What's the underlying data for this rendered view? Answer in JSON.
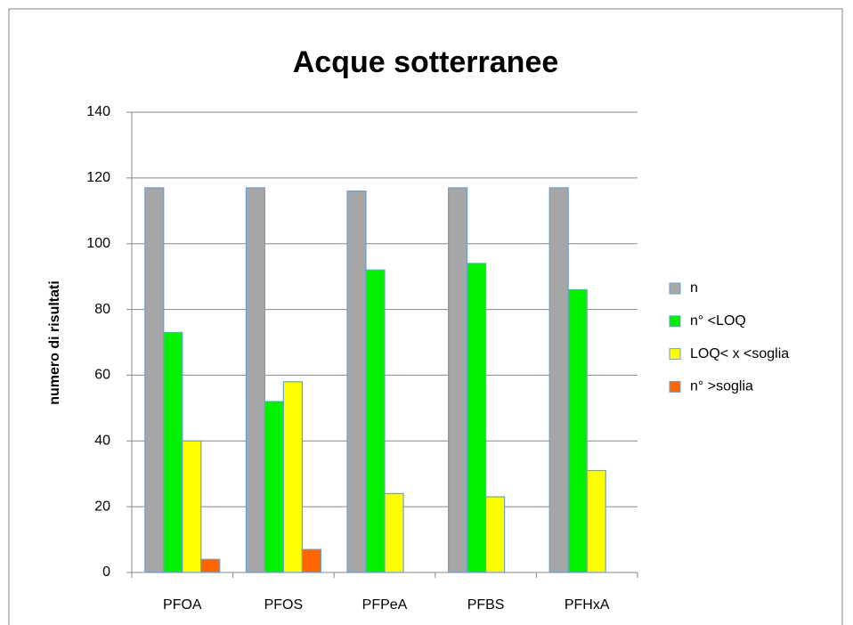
{
  "chart_data": {
    "type": "bar",
    "title": "Acque sotterranee",
    "y_label": "numero di risultati",
    "categories": [
      "PFOA",
      "PFOS",
      "PFPeA",
      "PFBS",
      "PFHxA"
    ],
    "series": [
      {
        "name": "n",
        "color": "#a6a6a6",
        "values": [
          117,
          117,
          116,
          117,
          117
        ]
      },
      {
        "name": "n° <LOQ",
        "color": "#00f000",
        "values": [
          73,
          52,
          92,
          94,
          86
        ]
      },
      {
        "name": "LOQ< x <soglia",
        "color": "#ffff00",
        "values": [
          40,
          58,
          24,
          23,
          31
        ]
      },
      {
        "name": "n° >soglia",
        "color": "#ff6600",
        "values": [
          4,
          7,
          0,
          0,
          0
        ]
      }
    ],
    "ylim": [
      0,
      140
    ],
    "yticks": [
      0,
      20,
      40,
      60,
      80,
      100,
      120,
      140
    ],
    "grid": true,
    "legend": "right"
  }
}
